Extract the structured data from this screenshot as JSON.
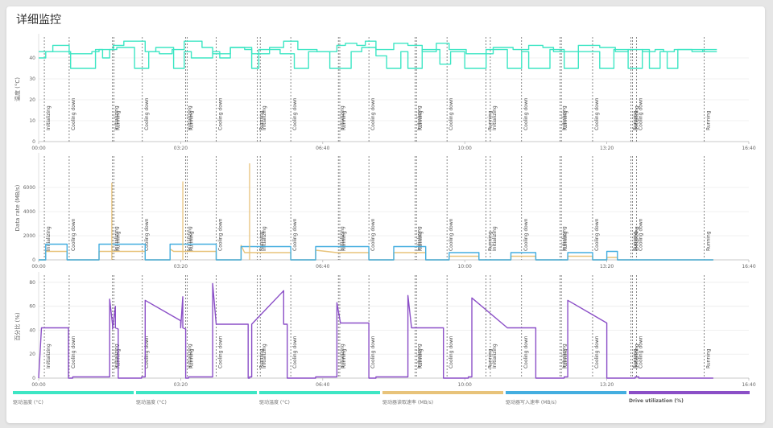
{
  "page": {
    "title": "详细监控"
  },
  "chart_data": [
    {
      "type": "line",
      "ylabel": "温度 (°C)",
      "yticks": [
        0,
        10,
        20,
        30,
        40
      ],
      "ylim": [
        0,
        50
      ],
      "xticks": [
        "00:00",
        "03:20",
        "06:40",
        "10:00",
        "13:20",
        "16:40"
      ],
      "xlim_seconds": [
        0,
        1000
      ],
      "series": [
        {
          "name": "驱动温度 (°C)",
          "color": "#3ee6c4",
          "x": [
            0,
            20,
            20,
            43,
            43,
            75,
            75,
            85,
            85,
            105,
            105,
            120,
            120,
            150,
            150,
            170,
            170,
            188,
            188,
            205,
            205,
            230,
            230,
            245,
            245,
            270,
            270,
            290,
            290,
            300,
            300,
            325,
            325,
            345,
            345,
            365,
            365,
            392,
            392,
            420,
            420,
            432,
            432,
            448,
            448,
            460,
            460,
            475,
            475,
            500,
            500,
            520,
            520,
            540,
            540,
            560,
            560,
            578,
            578,
            602,
            602,
            640,
            640,
            668,
            668,
            690,
            690,
            710,
            710,
            725,
            725,
            760,
            760,
            790,
            790,
            812,
            812,
            830,
            830,
            850,
            850,
            868,
            868,
            880,
            880,
            895,
            895,
            920,
            920,
            935,
            935,
            955
          ],
          "values": [
            43,
            43,
            46,
            46,
            42,
            42,
            43,
            43,
            44,
            44,
            46,
            46,
            48,
            48,
            43,
            43,
            42,
            42,
            44,
            44,
            48,
            48,
            45,
            45,
            42,
            42,
            45,
            45,
            44,
            44,
            42,
            42,
            45,
            45,
            48,
            48,
            44,
            44,
            43,
            43,
            46,
            46,
            47,
            47,
            46,
            46,
            48,
            48,
            44,
            44,
            47,
            47,
            46,
            46,
            43,
            43,
            47,
            47,
            44,
            44,
            42,
            42,
            45,
            45,
            44,
            44,
            46,
            46,
            45,
            45,
            43,
            43,
            46,
            46,
            45,
            45,
            43,
            43,
            44,
            44,
            43,
            43,
            44,
            44,
            43,
            43,
            44,
            44,
            43,
            43,
            44,
            44
          ]
        },
        {
          "name": "驱动温度 (°C)",
          "color": "#3ee6c4",
          "x": [
            0,
            10,
            10,
            45,
            45,
            80,
            80,
            90,
            90,
            100,
            100,
            110,
            110,
            135,
            135,
            155,
            155,
            165,
            165,
            190,
            190,
            205,
            205,
            215,
            215,
            245,
            245,
            255,
            255,
            270,
            270,
            300,
            300,
            310,
            310,
            340,
            340,
            360,
            360,
            380,
            380,
            410,
            410,
            440,
            440,
            455,
            455,
            475,
            475,
            490,
            490,
            510,
            510,
            520,
            520,
            540,
            540,
            565,
            565,
            580,
            580,
            600,
            600,
            630,
            630,
            660,
            660,
            680,
            680,
            690,
            690,
            720,
            720,
            740,
            740,
            760,
            760,
            790,
            790,
            810,
            810,
            830,
            830,
            850,
            850,
            860,
            860,
            875,
            875,
            885,
            885,
            900,
            900,
            935,
            935,
            955
          ],
          "values": [
            40,
            40,
            43,
            43,
            35,
            35,
            44,
            44,
            40,
            40,
            44,
            44,
            45,
            45,
            35,
            35,
            43,
            43,
            45,
            45,
            35,
            35,
            43,
            43,
            40,
            40,
            43,
            43,
            40,
            40,
            45,
            45,
            35,
            35,
            44,
            44,
            42,
            42,
            35,
            35,
            43,
            43,
            35,
            35,
            43,
            43,
            45,
            45,
            41,
            41,
            35,
            35,
            43,
            43,
            35,
            35,
            44,
            44,
            37,
            37,
            43,
            43,
            35,
            35,
            44,
            44,
            35,
            35,
            43,
            43,
            35,
            35,
            44,
            44,
            35,
            35,
            43,
            43,
            35,
            35,
            44,
            44,
            35,
            35,
            44,
            44,
            35,
            35,
            43,
            43,
            35,
            35,
            44,
            44,
            43,
            43
          ]
        }
      ]
    },
    {
      "type": "line",
      "ylabel": "Data rate (MB/s)",
      "yticks": [
        0,
        2000,
        4000,
        6000
      ],
      "ylim": [
        0,
        8600
      ],
      "xticks": [
        "00:00",
        "03:20",
        "06:40",
        "10:00",
        "13:20",
        "16:40"
      ],
      "xlim_seconds": [
        0,
        1000
      ],
      "series": [
        {
          "name": "驱动器读取速率 (MB/s)",
          "color": "#e8c37a",
          "x": [
            0,
            10,
            10,
            40,
            40,
            85,
            85,
            90,
            90,
            150,
            150,
            185,
            185,
            190,
            190,
            250,
            250,
            285,
            285,
            290,
            290,
            355,
            355,
            390,
            390,
            420,
            420,
            465,
            465,
            500,
            500,
            545,
            545,
            578,
            578,
            620,
            620,
            665,
            665,
            700,
            700,
            745,
            745,
            780,
            780,
            800,
            800,
            815,
            815,
            850,
            850,
            870,
            870,
            950
          ],
          "values": [
            0,
            0,
            700,
            700,
            0,
            0,
            700,
            700,
            700,
            700,
            0,
            0,
            900,
            700,
            700,
            700,
            0,
            0,
            1200,
            600,
            600,
            600,
            0,
            0,
            800,
            600,
            600,
            600,
            0,
            0,
            600,
            600,
            0,
            0,
            300,
            300,
            0,
            0,
            300,
            300,
            0,
            0,
            300,
            300,
            0,
            0,
            200,
            200,
            0,
            0,
            0,
            0,
            0,
            0
          ]
        },
        {
          "name": "驱动器写入速率 (MB/s)",
          "color": "#44aee0",
          "x": [
            0,
            10,
            10,
            40,
            40,
            85,
            85,
            90,
            90,
            150,
            150,
            185,
            185,
            190,
            190,
            250,
            250,
            285,
            285,
            290,
            290,
            355,
            355,
            390,
            390,
            420,
            420,
            465,
            465,
            500,
            500,
            545,
            545,
            578,
            578,
            620,
            620,
            665,
            665,
            700,
            700,
            745,
            745,
            780,
            780,
            800,
            800,
            815,
            815,
            850,
            850,
            870,
            870,
            950
          ],
          "values": [
            0,
            0,
            1300,
            1300,
            0,
            0,
            1300,
            1300,
            1300,
            1300,
            0,
            0,
            1300,
            1300,
            1300,
            1300,
            0,
            0,
            1100,
            1100,
            1100,
            1100,
            0,
            0,
            1100,
            1100,
            1100,
            1100,
            0,
            0,
            1100,
            1100,
            0,
            0,
            600,
            600,
            0,
            0,
            600,
            600,
            0,
            0,
            600,
            600,
            0,
            0,
            700,
            700,
            0,
            0,
            0,
            0,
            0,
            0
          ]
        }
      ],
      "spikes": [
        {
          "series": 0,
          "x": 103,
          "value": 6400
        },
        {
          "series": 0,
          "x": 203,
          "value": 6500
        },
        {
          "series": 0,
          "x": 297,
          "value": 8000
        }
      ]
    },
    {
      "type": "line",
      "ylabel": "百分比 (%)",
      "yticks": [
        0,
        20,
        40,
        60,
        80
      ],
      "ylim": [
        0,
        86
      ],
      "xticks": [
        "00:00",
        "03:20",
        "06:40",
        "10:00",
        "13:20",
        "16:40"
      ],
      "xlim_seconds": [
        0,
        1000
      ],
      "series": [
        {
          "name": "Drive utilization (%)",
          "color": "#8b4fc7",
          "x": [
            0,
            4,
            4,
            42,
            42,
            48,
            48,
            100,
            100,
            104,
            104,
            108,
            108,
            112,
            112,
            145,
            145,
            150,
            150,
            200,
            200,
            203,
            203,
            207,
            207,
            211,
            211,
            245,
            245,
            250,
            250,
            295,
            295,
            297,
            297,
            300,
            300,
            345,
            345,
            350,
            350,
            390,
            390,
            420,
            420,
            425,
            425,
            465,
            465,
            475,
            475,
            520,
            520,
            525,
            525,
            570,
            570,
            605,
            605,
            610,
            610,
            660,
            660,
            700,
            700,
            740,
            740,
            745,
            745,
            800,
            800,
            840,
            840,
            845,
            845,
            865,
            865,
            950
          ],
          "values": [
            0,
            42,
            42,
            42,
            0,
            0,
            1,
            1,
            66,
            45,
            41,
            60,
            42,
            41,
            0,
            0,
            1,
            1,
            65,
            48,
            42,
            68,
            42,
            41,
            0,
            0,
            1,
            1,
            79,
            45,
            45,
            45,
            0,
            0,
            1,
            1,
            45,
            73,
            45,
            45,
            0,
            0,
            1,
            1,
            63,
            46,
            46,
            46,
            0,
            0,
            1,
            1,
            69,
            42,
            42,
            42,
            0,
            0,
            1,
            1,
            67,
            42,
            42,
            42,
            0,
            0,
            1,
            1,
            65,
            46,
            0,
            0,
            1,
            1,
            0,
            0,
            0,
            0
          ]
        }
      ]
    }
  ],
  "annotations": [
    {
      "label": "Initializing",
      "x": 8,
      "charts": [
        0,
        1,
        2
      ]
    },
    {
      "label": "Cooling down",
      "x": 43,
      "charts": [
        0,
        1,
        2
      ]
    },
    {
      "label": "Initializing",
      "x": 104,
      "charts": [
        0,
        1,
        2
      ]
    },
    {
      "label": "Running",
      "x": 106,
      "charts": [
        0,
        1,
        2
      ]
    },
    {
      "label": "Cooling down",
      "x": 146,
      "charts": [
        0,
        1,
        2
      ]
    },
    {
      "label": "Initializing",
      "x": 207,
      "charts": [
        0,
        1,
        2
      ]
    },
    {
      "label": "Running",
      "x": 209,
      "charts": [
        0,
        1,
        2
      ]
    },
    {
      "label": "Cooling down",
      "x": 250,
      "charts": [
        0,
        1,
        2
      ]
    },
    {
      "label": "Running",
      "x": 308,
      "charts": [
        0,
        1,
        2
      ]
    },
    {
      "label": "Initializing",
      "x": 312,
      "charts": [
        0,
        1,
        2
      ]
    },
    {
      "label": "Cooling down",
      "x": 355,
      "charts": [
        0,
        1,
        2
      ]
    },
    {
      "label": "Initializing",
      "x": 422,
      "charts": [
        0,
        1,
        2
      ]
    },
    {
      "label": "Running",
      "x": 424,
      "charts": [
        0,
        1,
        2
      ]
    },
    {
      "label": "Cooling down",
      "x": 465,
      "charts": [
        0,
        1,
        2
      ]
    },
    {
      "label": "Initializing",
      "x": 530,
      "charts": [
        0,
        1,
        2
      ]
    },
    {
      "label": "Running",
      "x": 532,
      "charts": [
        0,
        1,
        2
      ]
    },
    {
      "label": "Cooling down",
      "x": 575,
      "charts": [
        0,
        1,
        2
      ]
    },
    {
      "label": "Running",
      "x": 630,
      "charts": [
        0,
        1,
        2
      ]
    },
    {
      "label": "Initializing",
      "x": 636,
      "charts": [
        0,
        1,
        2
      ]
    },
    {
      "label": "Cooling down",
      "x": 680,
      "charts": [
        0,
        1,
        2
      ]
    },
    {
      "label": "Initializing",
      "x": 734,
      "charts": [
        0,
        1,
        2
      ]
    },
    {
      "label": "Running",
      "x": 736,
      "charts": [
        0,
        1,
        2
      ]
    },
    {
      "label": "Cooling down",
      "x": 780,
      "charts": [
        0,
        1,
        2
      ]
    },
    {
      "label": "Running",
      "x": 834,
      "charts": [
        0,
        1,
        2
      ]
    },
    {
      "label": "Initializing",
      "x": 836,
      "charts": [
        0,
        1,
        2
      ]
    },
    {
      "label": "Cooling down",
      "x": 842,
      "charts": [
        0,
        1,
        2
      ]
    },
    {
      "label": "Running",
      "x": 937,
      "charts": [
        0,
        1,
        2
      ]
    }
  ],
  "legend": [
    {
      "label": "驱动温度 (°C)",
      "color": "#3ee6c4",
      "bold": false
    },
    {
      "label": "驱动温度 (°C)",
      "color": "#3ee6c4",
      "bold": false
    },
    {
      "label": "驱动温度 (°C)",
      "color": "#3ee6c4",
      "bold": false
    },
    {
      "label": "驱动器读取速率 (MB/s)",
      "color": "#e8c37a",
      "bold": false
    },
    {
      "label": "驱动器写入速率 (MB/s)",
      "color": "#44aee0",
      "bold": false
    },
    {
      "label": "Drive utilization (%)",
      "color": "#8b4fc7",
      "bold": true
    }
  ]
}
